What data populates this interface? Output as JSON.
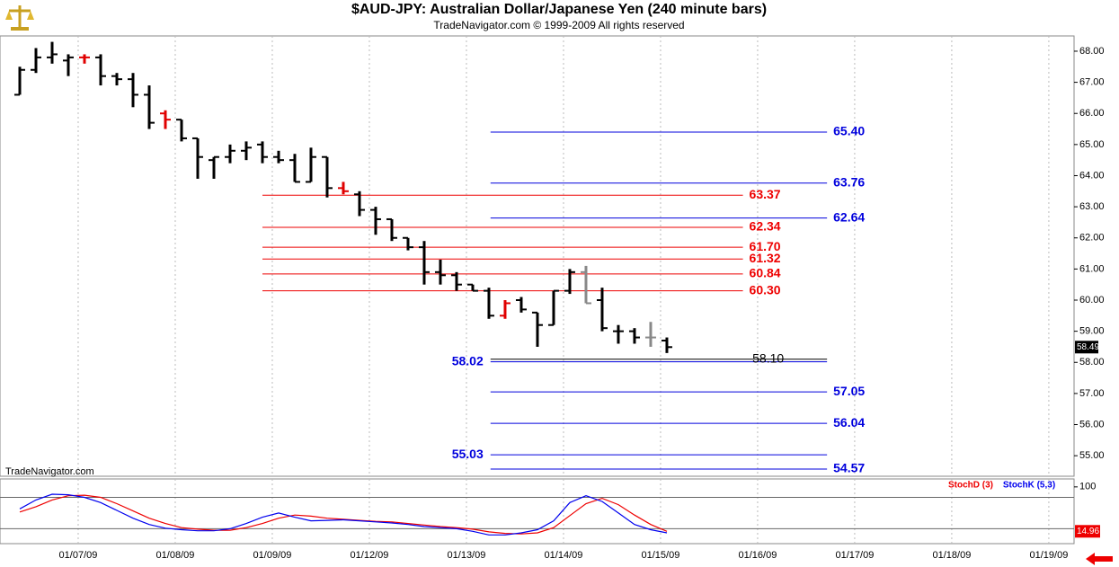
{
  "chart_data": [
    {
      "type": "ohlc",
      "title": "$AUD-JPY:  Australian Dollar/Japanese Yen  (240 minute bars)",
      "subtitle": "TradeNavigator.com © 1999-2009 All rights reserved",
      "watermark": "TradeNavigator.com",
      "xlim": [
        -1.222,
        65.17
      ],
      "ylim": [
        54.34,
        68.49
      ],
      "yticks": [
        {
          "value": 55,
          "label": "55.00"
        },
        {
          "value": 56,
          "label": "56.00"
        },
        {
          "value": 57,
          "label": "57.00"
        },
        {
          "value": 58,
          "label": "58.00"
        },
        {
          "value": 59,
          "label": "59.00"
        },
        {
          "value": 60,
          "label": "60.00"
        },
        {
          "value": 61,
          "label": "61.00"
        },
        {
          "value": 62,
          "label": "62.00"
        },
        {
          "value": 63,
          "label": "63.00"
        },
        {
          "value": 64,
          "label": "64.00"
        },
        {
          "value": 65,
          "label": "65.00"
        },
        {
          "value": 66,
          "label": "66.00"
        },
        {
          "value": 67,
          "label": "67.00"
        },
        {
          "value": 68,
          "label": "68.00"
        }
      ],
      "open": [
        66.6,
        67.4,
        67.8,
        67.7,
        67.8,
        67.8,
        67.2,
        67.1,
        66.6,
        66.0,
        65.8,
        65.2,
        64.5,
        64.6,
        64.8,
        65.0,
        64.6,
        64.5,
        63.8,
        64.6,
        63.6,
        63.4,
        62.9,
        62.6,
        62.0,
        61.7,
        60.9,
        60.8,
        60.5,
        60.3,
        59.5,
        60.0,
        59.6,
        59.2,
        60.3,
        60.9,
        60.0,
        59.0,
        59.0,
        58.8,
        58.7
      ],
      "high": [
        67.5,
        68.1,
        68.3,
        67.9,
        67.9,
        67.9,
        67.3,
        67.3,
        66.9,
        66.1,
        65.8,
        65.2,
        64.6,
        65.0,
        65.1,
        65.1,
        64.8,
        64.7,
        64.9,
        64.6,
        63.8,
        63.5,
        63.0,
        62.6,
        62.0,
        61.9,
        61.3,
        60.9,
        60.5,
        60.4,
        60.0,
        60.1,
        59.6,
        60.3,
        61.0,
        61.1,
        60.4,
        59.2,
        59.1,
        59.3,
        58.8
      ],
      "low": [
        66.6,
        67.3,
        67.6,
        67.2,
        67.6,
        66.9,
        66.9,
        66.2,
        65.5,
        65.5,
        65.1,
        63.9,
        63.9,
        64.4,
        64.5,
        64.4,
        64.4,
        63.8,
        63.8,
        63.3,
        63.4,
        62.7,
        62.1,
        61.9,
        61.6,
        60.5,
        60.5,
        60.3,
        60.3,
        59.4,
        59.4,
        59.6,
        58.5,
        59.2,
        60.2,
        59.9,
        59.0,
        58.6,
        58.6,
        58.5,
        58.3
      ],
      "close": [
        67.4,
        67.8,
        67.9,
        67.8,
        67.8,
        67.2,
        67.1,
        66.6,
        65.7,
        65.8,
        65.2,
        64.6,
        64.6,
        64.8,
        64.9,
        64.6,
        64.5,
        63.8,
        64.6,
        63.6,
        63.5,
        62.9,
        62.6,
        62.0,
        61.7,
        60.9,
        60.8,
        60.5,
        60.3,
        59.5,
        59.9,
        59.7,
        59.2,
        60.3,
        60.9,
        59.9,
        59.1,
        59.0,
        58.8,
        58.8,
        58.49
      ],
      "colors": [
        "#000000",
        "#000000",
        "#000000",
        "#000000",
        "#e00000",
        "#000000",
        "#000000",
        "#000000",
        "#000000",
        "#e00000",
        "#000000",
        "#000000",
        "#000000",
        "#000000",
        "#000000",
        "#000000",
        "#000000",
        "#000000",
        "#000000",
        "#000000",
        "#e00000",
        "#000000",
        "#000000",
        "#000000",
        "#000000",
        "#000000",
        "#000000",
        "#000000",
        "#000000",
        "#000000",
        "#e00000",
        "#000000",
        "#000000",
        "#000000",
        "#000000",
        "#888888",
        "#000000",
        "#000000",
        "#000000",
        "#888888",
        "#000000"
      ],
      "levels": [
        {
          "color": "#0000dd",
          "xrange": [
            29.1,
            49.9
          ],
          "values": [
            65.4,
            63.76,
            62.64,
            58.02,
            57.05,
            56.04,
            55.03,
            54.57
          ],
          "value_labels": [
            "65.40",
            "63.76",
            "62.64",
            "58.02",
            "57.05",
            "56.04",
            "55.03",
            "54.57"
          ],
          "label_sides": [
            "right",
            "right",
            "right",
            "left",
            "right",
            "right",
            "left",
            "right"
          ]
        },
        {
          "color": "#ee0000",
          "xrange": [
            15,
            44.7
          ],
          "values": [
            63.37,
            62.34,
            61.7,
            61.32,
            60.84,
            60.3
          ],
          "value_labels": [
            "63.37",
            "62.34",
            "61.70",
            "61.32",
            "60.84",
            "60.30"
          ],
          "label_sides": [
            "right",
            "right",
            "right",
            "right",
            "right",
            "right"
          ]
        },
        {
          "color": "#000000",
          "xrange": [
            29.1,
            49.9
          ],
          "values": [
            58.1
          ],
          "value_labels": [
            "58.10"
          ],
          "label_sides": [
            "over"
          ]
        }
      ]
    },
    {
      "type": "line",
      "xlim": [
        -1.222,
        65.17
      ],
      "ylim": [
        -8.6,
        115.2
      ],
      "yticks": [
        100
      ],
      "hlines": [
        20,
        80
      ],
      "xticks": [
        {
          "value": 3.61,
          "label": "01/07/09"
        },
        {
          "value": 9.61,
          "label": "01/08/09"
        },
        {
          "value": 15.61,
          "label": "01/09/09"
        },
        {
          "value": 21.61,
          "label": "01/12/09"
        },
        {
          "value": 27.61,
          "label": "01/13/09"
        },
        {
          "value": 33.61,
          "label": "01/14/09"
        },
        {
          "value": 39.61,
          "label": "01/15/09"
        },
        {
          "value": 45.61,
          "label": "01/16/09"
        },
        {
          "value": 51.61,
          "label": "01/17/09"
        },
        {
          "value": 57.61,
          "label": "01/18/09"
        },
        {
          "value": 63.61,
          "label": "01/19/09"
        }
      ],
      "series": [
        {
          "name": "StochD (3)",
          "color": "#ee0000",
          "values": [
            52,
            62,
            75,
            83,
            84,
            80,
            68,
            54,
            40,
            30,
            22,
            19,
            17,
            17,
            22,
            30,
            40,
            46,
            44,
            40,
            38,
            36,
            34,
            33,
            30,
            27,
            24,
            22,
            19,
            14,
            11,
            10,
            12,
            22,
            45,
            68,
            78,
            66,
            46,
            28,
            14.96
          ]
        },
        {
          "name": "StochK (5,3)",
          "color": "#0000ee",
          "values": [
            58,
            75,
            86,
            85,
            80,
            70,
            55,
            40,
            28,
            21,
            18,
            16,
            16,
            20,
            30,
            42,
            50,
            42,
            35,
            36,
            37,
            35,
            33,
            31,
            28,
            24,
            22,
            20,
            15,
            8,
            8,
            12,
            18,
            35,
            70,
            83,
            72,
            50,
            28,
            18,
            12
          ]
        }
      ]
    }
  ]
}
